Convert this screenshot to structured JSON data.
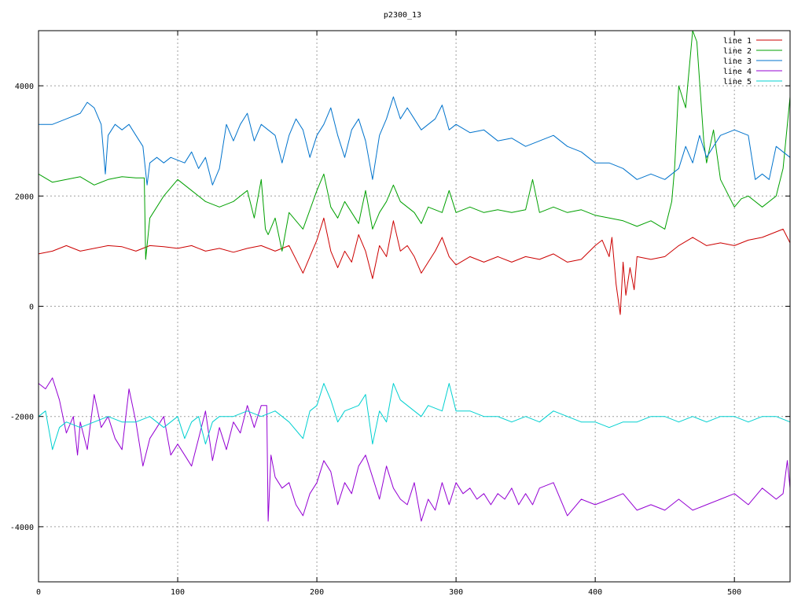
{
  "chart_data": {
    "type": "line",
    "title": "p2300_13",
    "xlabel": "",
    "ylabel": "",
    "xlim": [
      0,
      540
    ],
    "ylim": [
      -5000,
      5000
    ],
    "x_ticks": [
      0,
      100,
      200,
      300,
      400,
      500
    ],
    "y_ticks": [
      -4000,
      -2000,
      0,
      2000,
      4000
    ],
    "grid": true,
    "legend_position": "top-right",
    "series": [
      {
        "name": "line 1",
        "color": "#cc0000",
        "x": [
          0,
          10,
          20,
          30,
          40,
          50,
          60,
          70,
          80,
          90,
          100,
          110,
          120,
          130,
          140,
          150,
          160,
          170,
          180,
          190,
          195,
          200,
          205,
          210,
          215,
          220,
          225,
          230,
          235,
          240,
          245,
          250,
          255,
          260,
          265,
          270,
          275,
          280,
          285,
          290,
          295,
          300,
          310,
          320,
          330,
          340,
          350,
          360,
          370,
          380,
          390,
          400,
          405,
          410,
          412,
          415,
          418,
          420,
          422,
          425,
          428,
          430,
          440,
          450,
          460,
          470,
          480,
          490,
          500,
          510,
          520,
          530,
          535,
          540
        ],
        "y": [
          950,
          1000,
          1100,
          1000,
          1050,
          1100,
          1080,
          1000,
          1100,
          1080,
          1050,
          1100,
          1000,
          1050,
          980,
          1050,
          1100,
          1000,
          1100,
          600,
          900,
          1200,
          1600,
          1000,
          700,
          1000,
          800,
          1300,
          1000,
          500,
          1100,
          900,
          1550,
          1000,
          1100,
          900,
          600,
          800,
          1000,
          1250,
          900,
          750,
          900,
          800,
          900,
          800,
          900,
          850,
          950,
          800,
          850,
          1100,
          1200,
          900,
          1250,
          400,
          -150,
          800,
          200,
          700,
          300,
          900,
          850,
          900,
          1100,
          1250,
          1100,
          1150,
          1100,
          1200,
          1250,
          1350,
          1400,
          1150
        ]
      },
      {
        "name": "line 2",
        "color": "#00a000",
        "x": [
          0,
          10,
          20,
          30,
          40,
          50,
          60,
          70,
          76,
          77,
          80,
          90,
          100,
          110,
          120,
          130,
          140,
          150,
          155,
          160,
          163,
          165,
          170,
          175,
          180,
          190,
          200,
          205,
          210,
          215,
          220,
          230,
          235,
          240,
          245,
          250,
          255,
          260,
          270,
          275,
          280,
          290,
          295,
          300,
          310,
          320,
          330,
          340,
          350,
          355,
          360,
          370,
          380,
          390,
          400,
          410,
          420,
          430,
          440,
          450,
          455,
          457,
          460,
          465,
          470,
          473,
          478,
          480,
          485,
          490,
          500,
          505,
          510,
          520,
          530,
          535,
          540
        ],
        "y": [
          2400,
          2250,
          2300,
          2350,
          2200,
          2300,
          2350,
          2330,
          2330,
          850,
          1600,
          2000,
          2300,
          2100,
          1900,
          1800,
          1900,
          2100,
          1600,
          2300,
          1400,
          1300,
          1600,
          1000,
          1700,
          1400,
          2100,
          2400,
          1800,
          1600,
          1900,
          1500,
          2100,
          1400,
          1700,
          1900,
          2200,
          1900,
          1700,
          1500,
          1800,
          1700,
          2100,
          1700,
          1800,
          1700,
          1750,
          1700,
          1750,
          2300,
          1700,
          1800,
          1700,
          1750,
          1650,
          1600,
          1550,
          1450,
          1550,
          1400,
          1900,
          2500,
          4000,
          3600,
          5000,
          4800,
          3000,
          2600,
          3200,
          2300,
          1800,
          1950,
          2000,
          1800,
          2000,
          2500,
          3800
        ]
      },
      {
        "name": "line 3",
        "color": "#0073cc",
        "x": [
          0,
          10,
          20,
          30,
          35,
          40,
          45,
          48,
          50,
          55,
          60,
          65,
          70,
          75,
          78,
          80,
          85,
          90,
          95,
          100,
          105,
          110,
          115,
          120,
          125,
          130,
          135,
          140,
          145,
          150,
          155,
          160,
          165,
          170,
          175,
          180,
          185,
          190,
          195,
          200,
          205,
          210,
          215,
          220,
          225,
          230,
          235,
          240,
          245,
          250,
          255,
          260,
          265,
          270,
          275,
          280,
          285,
          290,
          295,
          300,
          310,
          320,
          330,
          340,
          350,
          360,
          370,
          380,
          390,
          400,
          410,
          420,
          430,
          440,
          450,
          460,
          465,
          470,
          475,
          480,
          485,
          490,
          500,
          510,
          515,
          520,
          525,
          530,
          535,
          540
        ],
        "y": [
          3300,
          3300,
          3400,
          3500,
          3700,
          3600,
          3300,
          2400,
          3100,
          3300,
          3200,
          3300,
          3100,
          2900,
          2200,
          2600,
          2700,
          2600,
          2700,
          2650,
          2600,
          2800,
          2500,
          2700,
          2200,
          2500,
          3300,
          3000,
          3300,
          3500,
          3000,
          3300,
          3200,
          3100,
          2600,
          3100,
          3400,
          3200,
          2700,
          3100,
          3300,
          3600,
          3100,
          2700,
          3200,
          3400,
          3000,
          2300,
          3100,
          3400,
          3800,
          3400,
          3600,
          3400,
          3200,
          3300,
          3400,
          3650,
          3200,
          3300,
          3150,
          3200,
          3000,
          3050,
          2900,
          3000,
          3100,
          2900,
          2800,
          2600,
          2600,
          2500,
          2300,
          2400,
          2300,
          2500,
          2900,
          2600,
          3100,
          2700,
          2900,
          3100,
          3200,
          3100,
          2300,
          2400,
          2300,
          2900,
          2800,
          2700
        ]
      },
      {
        "name": "line 4",
        "color": "#9400d3",
        "x": [
          0,
          5,
          10,
          15,
          20,
          25,
          28,
          30,
          35,
          40,
          45,
          50,
          55,
          60,
          65,
          70,
          75,
          80,
          85,
          90,
          95,
          100,
          105,
          110,
          115,
          120,
          125,
          130,
          135,
          140,
          145,
          150,
          155,
          160,
          164,
          165,
          167,
          170,
          175,
          180,
          185,
          190,
          195,
          200,
          205,
          210,
          215,
          220,
          225,
          230,
          235,
          240,
          245,
          250,
          255,
          260,
          265,
          270,
          275,
          280,
          285,
          290,
          295,
          300,
          305,
          310,
          315,
          320,
          325,
          330,
          335,
          340,
          345,
          350,
          355,
          360,
          370,
          380,
          390,
          400,
          410,
          420,
          430,
          440,
          450,
          460,
          470,
          480,
          490,
          500,
          510,
          520,
          530,
          535,
          538,
          540
        ],
        "y": [
          -1400,
          -1500,
          -1300,
          -1700,
          -2300,
          -2000,
          -2700,
          -2100,
          -2600,
          -1600,
          -2200,
          -2000,
          -2400,
          -2600,
          -1500,
          -2100,
          -2900,
          -2400,
          -2200,
          -2000,
          -2700,
          -2500,
          -2700,
          -2900,
          -2400,
          -1900,
          -2800,
          -2200,
          -2600,
          -2100,
          -2300,
          -1800,
          -2200,
          -1800,
          -1800,
          -3900,
          -2700,
          -3100,
          -3300,
          -3200,
          -3600,
          -3800,
          -3400,
          -3200,
          -2800,
          -3000,
          -3600,
          -3200,
          -3400,
          -2900,
          -2700,
          -3100,
          -3500,
          -2900,
          -3300,
          -3500,
          -3600,
          -3200,
          -3900,
          -3500,
          -3700,
          -3200,
          -3600,
          -3200,
          -3400,
          -3300,
          -3500,
          -3400,
          -3600,
          -3400,
          -3500,
          -3300,
          -3600,
          -3400,
          -3600,
          -3300,
          -3200,
          -3800,
          -3500,
          -3600,
          -3500,
          -3400,
          -3700,
          -3600,
          -3700,
          -3500,
          -3700,
          -3600,
          -3500,
          -3400,
          -3600,
          -3300,
          -3500,
          -3400,
          -2800,
          -3300
        ]
      },
      {
        "name": "line 5",
        "color": "#00d0d0",
        "x": [
          0,
          5,
          10,
          15,
          20,
          30,
          40,
          50,
          60,
          70,
          80,
          90,
          100,
          105,
          110,
          115,
          120,
          125,
          130,
          140,
          150,
          160,
          170,
          180,
          190,
          195,
          200,
          205,
          210,
          215,
          220,
          230,
          235,
          240,
          245,
          250,
          255,
          260,
          270,
          275,
          280,
          290,
          295,
          300,
          310,
          320,
          330,
          340,
          350,
          360,
          370,
          380,
          390,
          400,
          410,
          420,
          430,
          440,
          450,
          460,
          470,
          480,
          490,
          500,
          510,
          520,
          530,
          540
        ],
        "y": [
          -2000,
          -1900,
          -2600,
          -2200,
          -2100,
          -2200,
          -2100,
          -2000,
          -2100,
          -2100,
          -2000,
          -2200,
          -2000,
          -2400,
          -2100,
          -2000,
          -2500,
          -2100,
          -2000,
          -2000,
          -1900,
          -2000,
          -1900,
          -2100,
          -2400,
          -1900,
          -1800,
          -1400,
          -1700,
          -2100,
          -1900,
          -1800,
          -1600,
          -2500,
          -1900,
          -2100,
          -1400,
          -1700,
          -1900,
          -2000,
          -1800,
          -1900,
          -1400,
          -1900,
          -1900,
          -2000,
          -2000,
          -2100,
          -2000,
          -2100,
          -1900,
          -2000,
          -2100,
          -2100,
          -2200,
          -2100,
          -2100,
          -2000,
          -2000,
          -2100,
          -2000,
          -2100,
          -2000,
          -2000,
          -2100,
          -2000,
          -2000,
          -2100
        ]
      }
    ]
  }
}
